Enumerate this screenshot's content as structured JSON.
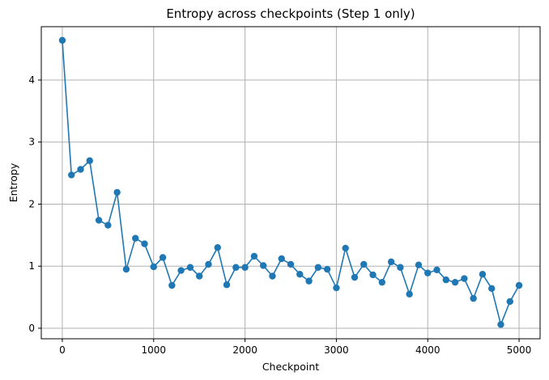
{
  "chart_data": {
    "type": "line",
    "title": "Entropy across checkpoints (Step 1 only)",
    "xlabel": "Checkpoint",
    "ylabel": "Entropy",
    "xlim": [
      -230,
      5230
    ],
    "ylim": [
      -0.17,
      4.86
    ],
    "xticks": [
      0,
      1000,
      2000,
      3000,
      4000,
      5000
    ],
    "yticks": [
      0,
      1,
      2,
      3,
      4
    ],
    "grid": true,
    "marker": "circle",
    "color": "#1f77b4",
    "series": [
      {
        "name": "Entropy",
        "x": [
          0,
          100,
          200,
          300,
          400,
          500,
          600,
          700,
          800,
          900,
          1000,
          1100,
          1200,
          1300,
          1400,
          1500,
          1600,
          1700,
          1800,
          1900,
          2000,
          2100,
          2200,
          2300,
          2400,
          2500,
          2600,
          2700,
          2800,
          2900,
          3000,
          3100,
          3200,
          3300,
          3400,
          3500,
          3600,
          3700,
          3800,
          3900,
          4000,
          4100,
          4200,
          4300,
          4400,
          4500,
          4600,
          4700,
          4800,
          4900,
          5000
        ],
        "values": [
          4.64,
          2.47,
          2.56,
          2.7,
          1.74,
          1.66,
          2.19,
          0.95,
          1.45,
          1.36,
          0.99,
          1.14,
          0.69,
          0.93,
          0.98,
          0.84,
          1.03,
          1.3,
          0.7,
          0.98,
          0.98,
          1.16,
          1.01,
          0.84,
          1.12,
          1.03,
          0.87,
          0.76,
          0.98,
          0.95,
          0.65,
          1.29,
          0.82,
          1.03,
          0.86,
          0.74,
          1.07,
          0.98,
          0.55,
          1.02,
          0.89,
          0.94,
          0.78,
          0.74,
          0.8,
          0.48,
          0.87,
          0.64,
          0.06,
          0.43,
          0.69
        ]
      }
    ]
  }
}
